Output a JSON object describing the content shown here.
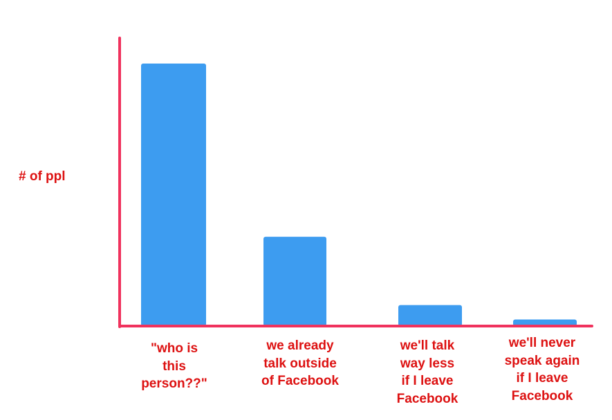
{
  "chart_data": {
    "type": "bar",
    "title": "",
    "xlabel": "",
    "ylabel": "# of ppl",
    "ylim": [
      0,
      100
    ],
    "grid": false,
    "categories": [
      "\"who is\nthis\nperson??\"",
      "we already\ntalk outside\nof Facebook",
      "we'll talk\nway less\nif I leave\nFacebook",
      "we'll never\nspeak again\nif I leave\nFacebook"
    ],
    "values": [
      100,
      34,
      8,
      2.5
    ],
    "colors": {
      "bar": "#3d9cf0",
      "axis": "#f0325d",
      "label": "#dd1111"
    }
  }
}
